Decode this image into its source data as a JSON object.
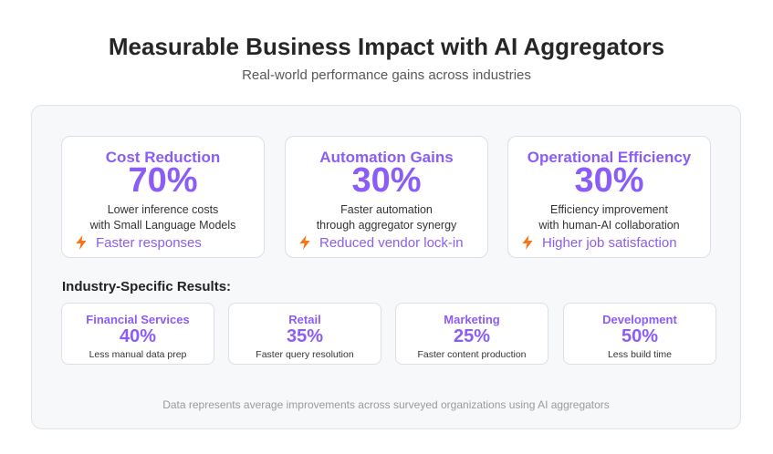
{
  "header": {
    "title": "Measurable Business Impact with AI Aggregators",
    "subtitle": "Real-world performance gains across industries"
  },
  "accent_color": "#8b5cf6",
  "benefit_icon_color": "#f97316",
  "metrics": [
    {
      "title": "Cost Reduction",
      "value": "70%",
      "desc_line1": "Lower inference costs",
      "desc_line2": "with Small Language Models",
      "benefit_icon": "lightning-bolt-icon",
      "benefit": "Faster responses"
    },
    {
      "title": "Automation Gains",
      "value": "30%",
      "desc_line1": "Faster automation",
      "desc_line2": "through aggregator synergy",
      "benefit_icon": "lightning-bolt-icon",
      "benefit": "Reduced vendor lock-in"
    },
    {
      "title": "Operational Efficiency",
      "value": "30%",
      "desc_line1": "Efficiency improvement",
      "desc_line2": "with human-AI collaboration",
      "benefit_icon": "lightning-bolt-icon",
      "benefit": "Higher job satisfaction"
    }
  ],
  "industry": {
    "heading": "Industry-Specific Results:",
    "items": [
      {
        "name": "Financial Services",
        "value": "40%",
        "desc": "Less manual data prep"
      },
      {
        "name": "Retail",
        "value": "35%",
        "desc": "Faster query resolution"
      },
      {
        "name": "Marketing",
        "value": "25%",
        "desc": "Faster content production"
      },
      {
        "name": "Development",
        "value": "50%",
        "desc": "Less build time"
      }
    ]
  },
  "footnote": "Data represents average improvements across surveyed organizations using AI aggregators"
}
